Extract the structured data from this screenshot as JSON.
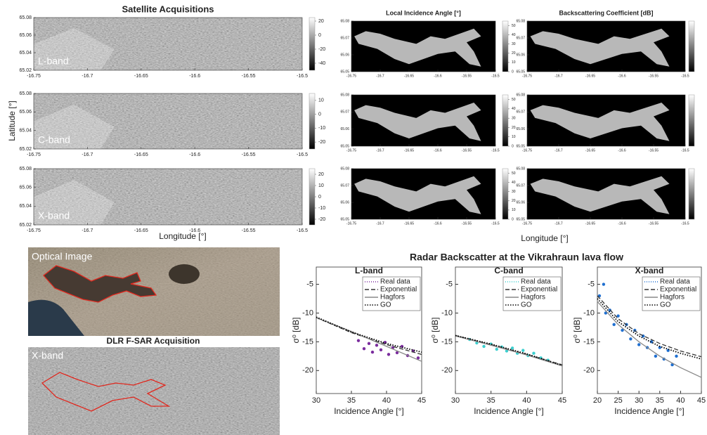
{
  "chart_data": [
    {
      "type": "image",
      "title": "Satellite Acquisitions",
      "xlabel": "Longitude [°]",
      "ylabel": "Latitude [°]",
      "xlim": [
        -16.75,
        -16.5
      ],
      "xticks": [
        -16.75,
        -16.7,
        -16.65,
        -16.6,
        -16.55,
        -16.5
      ],
      "ylim": [
        65.02,
        65.08
      ],
      "yticks": [
        65.02,
        65.04,
        65.06,
        65.08
      ],
      "panels": [
        {
          "label": "L-band",
          "clim": [
            -50,
            25
          ],
          "cticks": [
            20,
            0,
            -20,
            -40
          ]
        },
        {
          "label": "C-band",
          "clim": [
            -25,
            15
          ],
          "cticks": [
            10,
            0,
            -10,
            -20
          ]
        },
        {
          "label": "X-band",
          "clim": [
            -25,
            25
          ],
          "cticks": [
            20,
            10,
            0,
            -10,
            -20
          ]
        }
      ]
    },
    {
      "type": "image",
      "title": "Local Incidence Angle [°]",
      "xlabel": "Longitude [°]",
      "xlim": [
        -16.75,
        -16.5
      ],
      "xticks": [
        -16.75,
        -16.7,
        -16.65,
        -16.6,
        -16.55,
        -16.5
      ],
      "ylim": [
        65.05,
        65.08
      ],
      "yticks": [
        65.05,
        65.06,
        65.07,
        65.08
      ],
      "panels": [
        {
          "clim": [
            0,
            55
          ],
          "cticks": [
            0,
            10,
            20,
            30,
            40,
            50
          ]
        },
        {
          "clim": [
            0,
            55
          ],
          "cticks": [
            0,
            10,
            20,
            30,
            40,
            50
          ]
        },
        {
          "clim": [
            0,
            55
          ],
          "cticks": [
            0,
            10,
            20,
            30,
            40,
            50
          ]
        }
      ]
    },
    {
      "type": "image",
      "title": "Backscattering Coefficient [dB]",
      "xlim": [
        -16.75,
        -16.5
      ],
      "xticks": [
        -16.75,
        -16.7,
        -16.65,
        -16.6,
        -16.55,
        -16.5
      ],
      "ylim": [
        65.05,
        65.08
      ],
      "yticks": [
        65.05,
        65.06,
        65.07,
        65.08
      ]
    },
    {
      "type": "scatter",
      "title": "L-band",
      "xlabel": "Incidence Angle [°]",
      "ylabel": "σ⁰ [dB]",
      "xlim": [
        30,
        45
      ],
      "xticks": [
        30,
        35,
        40,
        45
      ],
      "ylim": [
        -24,
        -2
      ],
      "yticks": [
        -5,
        -10,
        -15,
        -20
      ],
      "legend": "upper right",
      "series": [
        {
          "name": "Real data",
          "color": "#7b2d9e",
          "style": "points",
          "x": [
            36,
            36.8,
            37.5,
            38,
            38.6,
            39.2,
            39.8,
            40.3,
            40.9,
            41.5,
            42.2,
            43,
            43.8,
            44.5
          ],
          "values": [
            -14.8,
            -16.2,
            -15.3,
            -16.8,
            -15.6,
            -16.4,
            -15.1,
            -17.2,
            -16,
            -16.9,
            -15.8,
            -17.4,
            -16.6,
            -17.8
          ]
        },
        {
          "name": "Exponential",
          "color": "#333333",
          "style": "dashed",
          "x": [
            30,
            35,
            40,
            45
          ],
          "values": [
            -10.8,
            -13.4,
            -15.5,
            -17.2
          ]
        },
        {
          "name": "Hagfors",
          "color": "#888888",
          "style": "solid",
          "x": [
            30,
            35,
            40,
            45
          ],
          "values": [
            -10.8,
            -13.2,
            -15.8,
            -18.4
          ]
        },
        {
          "name": "GO",
          "color": "#000000",
          "style": "dotted",
          "x": [
            30,
            35,
            40,
            45
          ],
          "values": [
            -10.7,
            -13.3,
            -15.3,
            -16.8
          ]
        }
      ]
    },
    {
      "type": "scatter",
      "title": "C-band",
      "xlabel": "Incidence Angle [°]",
      "ylabel": "σ⁰ [dB]",
      "xlim": [
        30,
        45
      ],
      "xticks": [
        30,
        35,
        40,
        45
      ],
      "ylim": [
        -24,
        -2
      ],
      "yticks": [
        -5,
        -10,
        -15,
        -20
      ],
      "legend": "upper right",
      "series": [
        {
          "name": "Real data",
          "color": "#3ccfcf",
          "style": "points",
          "x": [
            32,
            33,
            34,
            35,
            35.8,
            36.5,
            37.2,
            38,
            38.7,
            39.5,
            40.2,
            41,
            42,
            43
          ],
          "values": [
            -14.6,
            -15.2,
            -15.8,
            -15.4,
            -16.3,
            -15.9,
            -16.6,
            -16.1,
            -17,
            -16.5,
            -17.4,
            -17,
            -17.8,
            -18.2
          ]
        },
        {
          "name": "Exponential",
          "color": "#333333",
          "style": "dashed",
          "x": [
            30,
            35,
            40,
            45
          ],
          "values": [
            -13.9,
            -15.5,
            -17.2,
            -19
          ]
        },
        {
          "name": "Hagfors",
          "color": "#888888",
          "style": "solid",
          "x": [
            30,
            35,
            40,
            45
          ],
          "values": [
            -14,
            -15.6,
            -17.3,
            -19.2
          ]
        },
        {
          "name": "GO",
          "color": "#000000",
          "style": "dotted",
          "x": [
            30,
            35,
            40,
            45
          ],
          "values": [
            -13.9,
            -15.4,
            -17.1,
            -19.1
          ]
        }
      ]
    },
    {
      "type": "scatter",
      "title": "X-band",
      "xlabel": "Incidence Angle [°]",
      "ylabel": "σ⁰ [dB]",
      "xlim": [
        20,
        45
      ],
      "xticks": [
        20,
        25,
        30,
        35,
        40,
        45
      ],
      "ylim": [
        -24,
        -2
      ],
      "yticks": [
        -5,
        -10,
        -15,
        -20
      ],
      "legend": "upper right",
      "series": [
        {
          "name": "Real data",
          "color": "#1f6fd0",
          "style": "points",
          "x": [
            20.5,
            21.5,
            22,
            23,
            24,
            25,
            26,
            27,
            28,
            29,
            30,
            31,
            32,
            33,
            34,
            35,
            36,
            37,
            38,
            39
          ],
          "values": [
            -7,
            -5,
            -10,
            -9.5,
            -12,
            -10.5,
            -13,
            -12,
            -14.5,
            -13,
            -15.5,
            -14,
            -16,
            -15,
            -17.5,
            -16,
            -18,
            -16.5,
            -19,
            -17.5
          ]
        },
        {
          "name": "Exponential",
          "color": "#333333",
          "style": "dashed",
          "x": [
            20,
            25,
            30,
            35,
            40,
            45
          ],
          "values": [
            -7,
            -11,
            -13.6,
            -15.3,
            -16.6,
            -17.6
          ]
        },
        {
          "name": "Hagfors",
          "color": "#888888",
          "style": "solid",
          "x": [
            20,
            25,
            30,
            35,
            40,
            45
          ],
          "values": [
            -8,
            -12,
            -15,
            -17.5,
            -19.5,
            -21.2
          ]
        },
        {
          "name": "GO",
          "color": "#000000",
          "style": "dotted",
          "x": [
            20,
            25,
            30,
            35,
            40,
            45
          ],
          "values": [
            -7.5,
            -11.5,
            -14,
            -15.8,
            -17,
            -18
          ]
        }
      ]
    }
  ],
  "figure": {
    "title": "Radar Backscatter at the Vikrahraun lava flow"
  },
  "optical": {
    "label": "Optical Image"
  },
  "fsar": {
    "title": "DLR F-SAR Acquisition",
    "label": "X-band"
  }
}
